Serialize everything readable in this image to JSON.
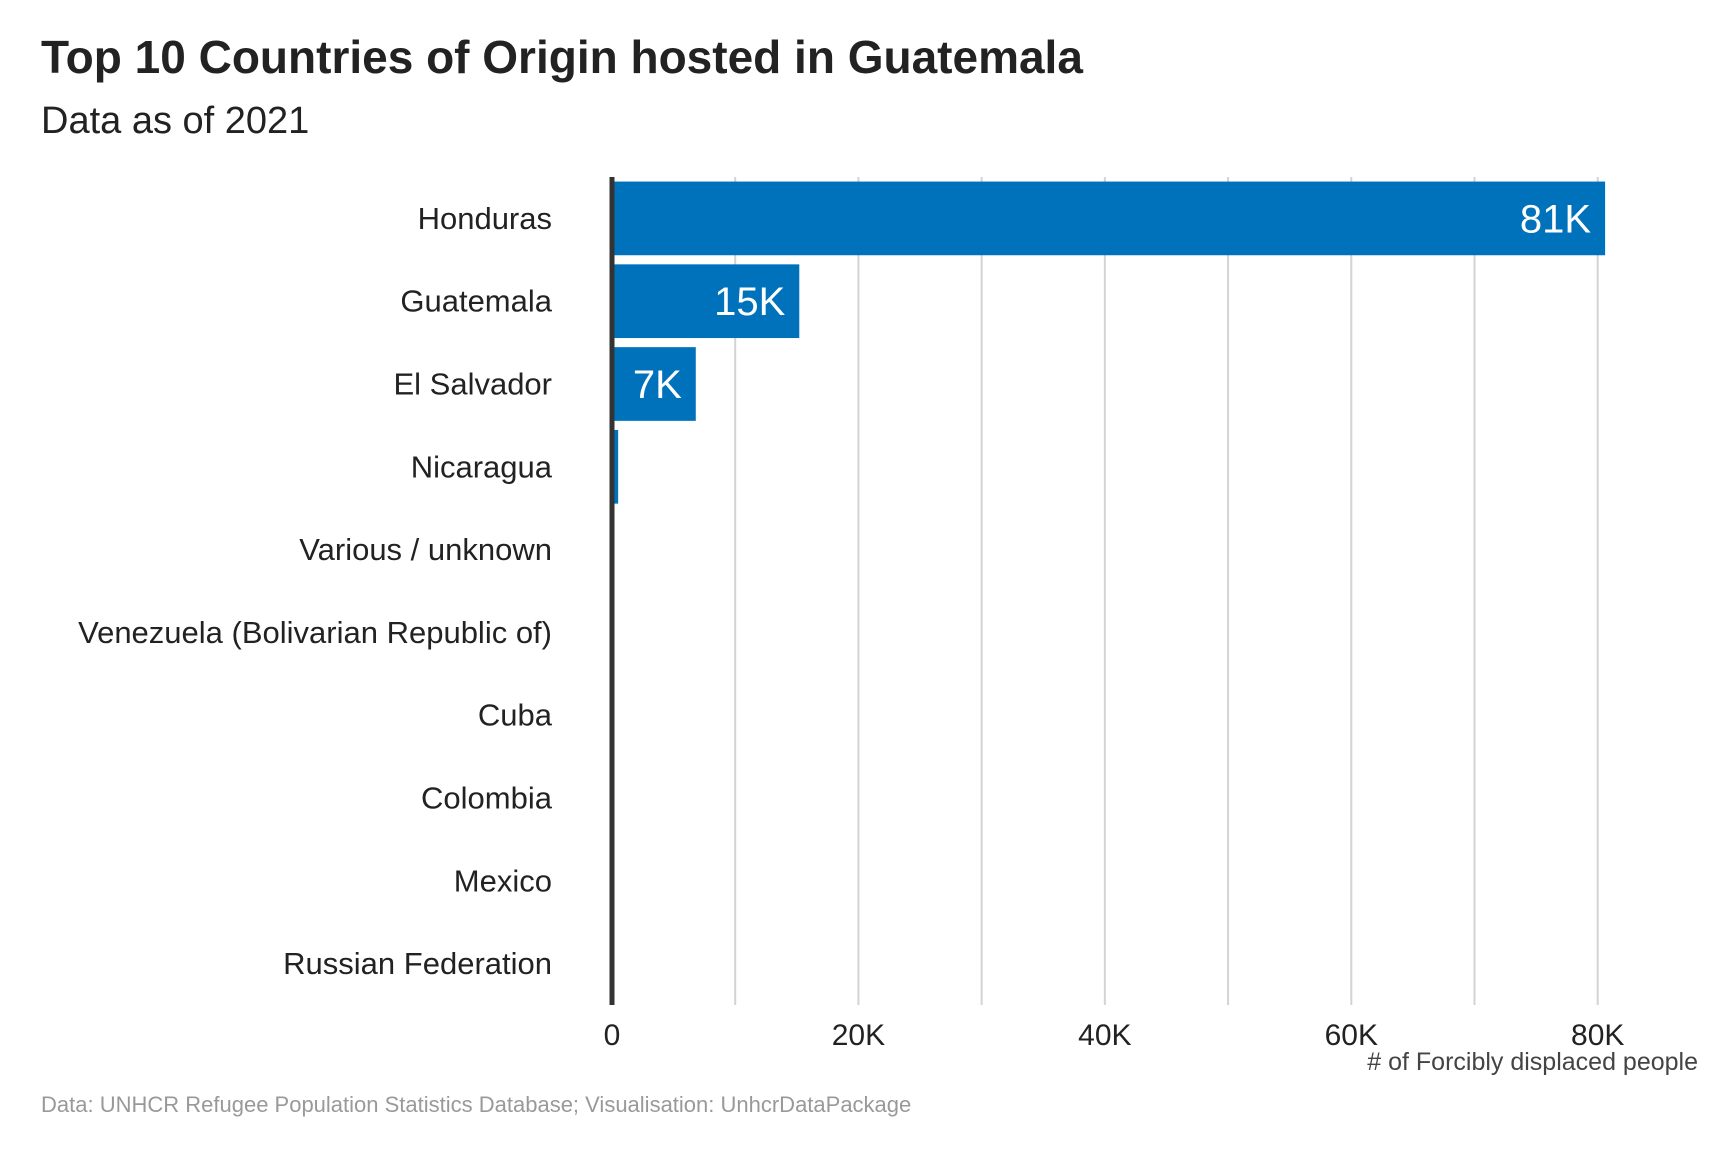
{
  "chart_data": {
    "type": "bar",
    "orientation": "horizontal",
    "title": "Top 10 Countries of Origin hosted in Guatemala",
    "subtitle": "Data as of 2021",
    "caption": "Data: UNHCR Refugee Population Statistics Database; Visualisation: UnhcrDataPackage",
    "xlabel": "# of Forcibly displaced people",
    "ylabel": "",
    "categories": [
      "Honduras",
      "Guatemala",
      "El Salvador",
      "Nicaragua",
      "Various / unknown",
      "Venezuela (Bolivarian Republic of)",
      "Cuba",
      "Colombia",
      "Mexico",
      "Russian Federation"
    ],
    "values": [
      80600,
      15200,
      6800,
      500,
      30,
      20,
      15,
      10,
      8,
      5
    ],
    "data_labels": [
      "81K",
      "15K",
      "7K",
      "",
      "",
      "",
      "",
      "",
      "",
      ""
    ],
    "xlim": [
      0,
      84000
    ],
    "x_ticks": [
      0,
      20000,
      40000,
      60000,
      80000
    ],
    "x_tick_labels": [
      "0",
      "20K",
      "40K",
      "60K",
      "80K"
    ],
    "minor_gridlines": [
      10000,
      30000,
      50000,
      70000
    ],
    "grid": "vertical",
    "bar_color": "#0072BC"
  }
}
